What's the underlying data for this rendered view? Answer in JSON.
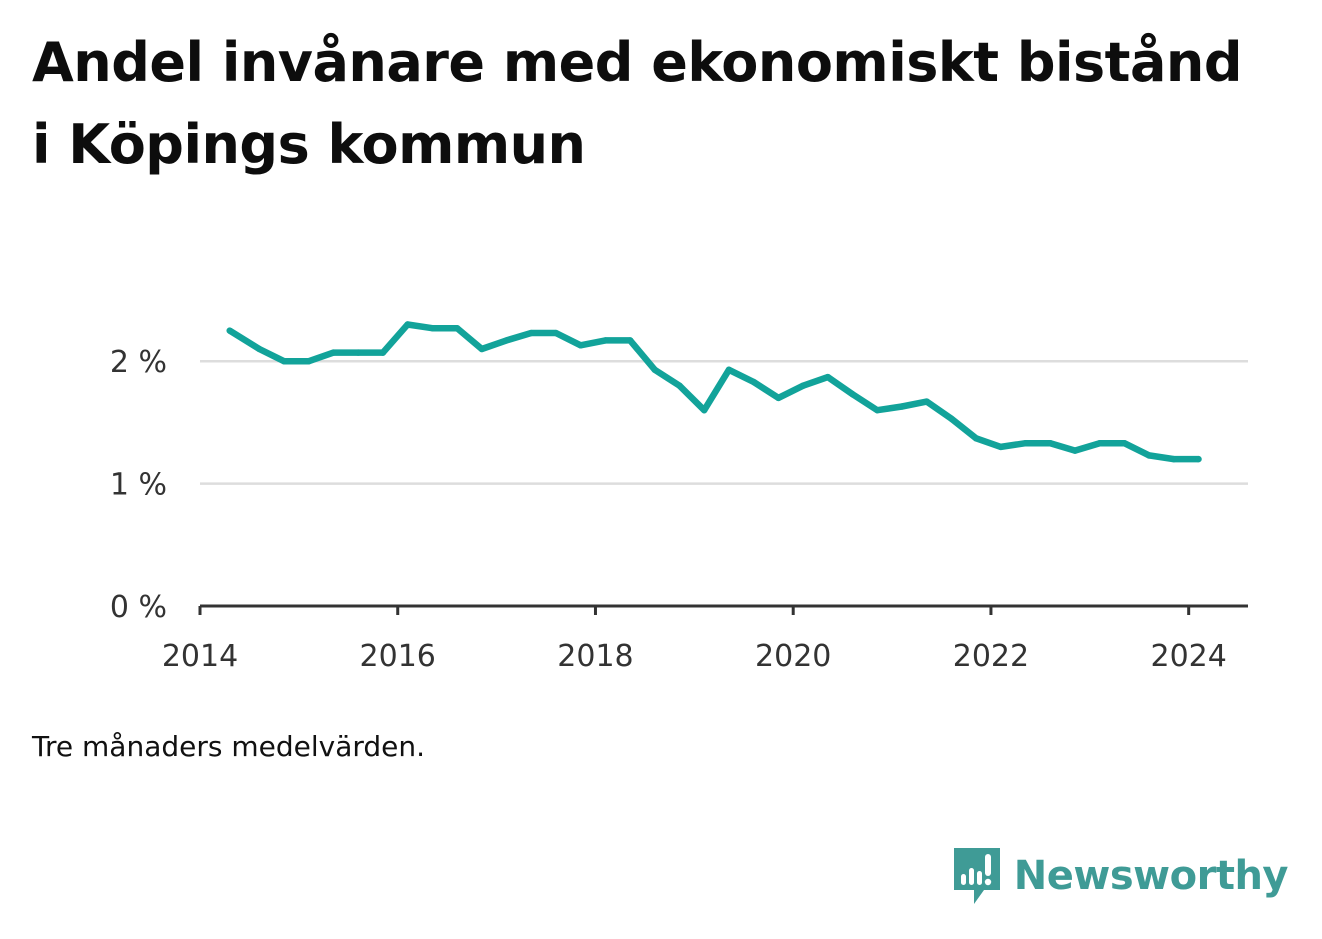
{
  "header": {
    "title": "Andel invånare med ekonomiskt bistånd i Köpings kommun"
  },
  "footer": {
    "note": "Tre månaders medelvärden.",
    "brand": "Newsworthy"
  },
  "colors": {
    "line": "#12a39a",
    "grid": "#dddddd",
    "axis": "#333333",
    "brand": "#3f9b96"
  },
  "chart_data": {
    "type": "line",
    "title": "Andel invånare med ekonomiskt bistånd i Köpings kommun",
    "xlabel": "",
    "ylabel": "",
    "xlim": [
      2014.0,
      2024.6
    ],
    "ylim": [
      0,
      2.5
    ],
    "x_ticks": [
      2014,
      2016,
      2018,
      2020,
      2022,
      2024
    ],
    "x_tick_labels": [
      "2014",
      "2016",
      "2018",
      "2020",
      "2022",
      "2024"
    ],
    "y_ticks": [
      0,
      1,
      2
    ],
    "y_tick_labels": [
      "0 %",
      "1 %",
      "2 %"
    ],
    "grid": "horizontal",
    "legend": "none",
    "series": [
      {
        "x": [
          2014.3,
          2014.6,
          2014.85,
          2015.1,
          2015.35,
          2015.6,
          2015.85,
          2016.1,
          2016.35,
          2016.6,
          2016.85,
          2017.1,
          2017.35,
          2017.6,
          2017.85,
          2018.1,
          2018.35,
          2018.6,
          2018.85,
          2019.1,
          2019.35,
          2019.6,
          2019.85,
          2020.1,
          2020.35,
          2020.6,
          2020.85,
          2021.1,
          2021.35,
          2021.6,
          2021.85,
          2022.1,
          2022.35,
          2022.6,
          2022.85,
          2023.1,
          2023.35,
          2023.6,
          2023.85,
          2024.1
        ],
        "values": [
          2.25,
          2.1,
          2.0,
          2.0,
          2.07,
          2.07,
          2.07,
          2.3,
          2.27,
          2.27,
          2.1,
          2.17,
          2.23,
          2.23,
          2.13,
          2.17,
          2.17,
          1.93,
          1.8,
          1.6,
          1.93,
          1.83,
          1.7,
          1.8,
          1.87,
          1.73,
          1.6,
          1.63,
          1.67,
          1.53,
          1.37,
          1.3,
          1.33,
          1.33,
          1.27,
          1.33,
          1.33,
          1.23,
          1.2,
          1.2
        ]
      }
    ]
  }
}
